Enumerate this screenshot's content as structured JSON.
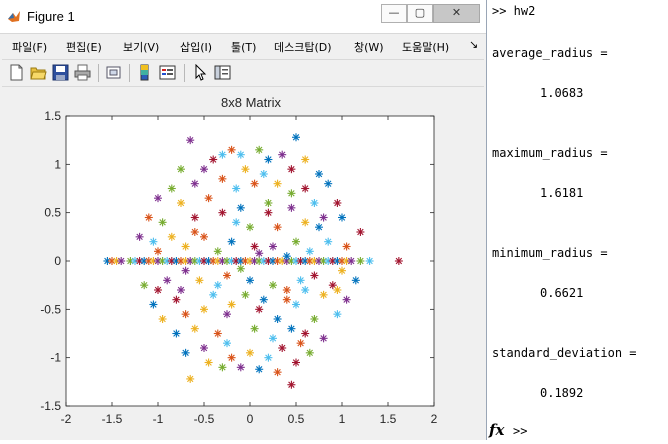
{
  "window": {
    "title": "Figure 1",
    "buttons": {
      "minimize": "—",
      "maximize": "▢",
      "close": "✕"
    }
  },
  "menu": [
    {
      "label": "파일(F)"
    },
    {
      "label": "편집(E)"
    },
    {
      "label": "보기(V)"
    },
    {
      "label": "삽입(I)"
    },
    {
      "label": "툴(T)"
    },
    {
      "label": "데스크탑(D)"
    },
    {
      "label": "창(W)"
    },
    {
      "label": "도움말(H)"
    }
  ],
  "menu_overflow": "↘",
  "toolbar_icons": [
    "new-figure-icon",
    "open-file-icon",
    "save-icon",
    "print-icon",
    "link-plot-icon",
    "insert-colorbar-icon",
    "insert-legend-icon",
    "pointer-arrow-icon",
    "property-inspector-icon"
  ],
  "chart_data": {
    "type": "scatter",
    "title": "8x8 Matrix",
    "xlabel": "",
    "ylabel": "",
    "xlim": [
      -2,
      2
    ],
    "ylim": [
      -1.5,
      1.5
    ],
    "xticks": [
      "-2",
      "-1.5",
      "-1",
      "-0.5",
      "0",
      "0.5",
      "1",
      "1.5",
      "2"
    ],
    "yticks": [
      "1.5",
      "1",
      "0.5",
      "0",
      "-0.5",
      "-1",
      "-1.5"
    ],
    "marker": "asterisk",
    "grid": false,
    "colors": [
      "#0072BD",
      "#D95319",
      "#EDB120",
      "#7E2F8E",
      "#77AC30",
      "#4DBEEE",
      "#A2142F"
    ],
    "axis_points": [
      -1.55,
      -1.5,
      -1.45,
      -1.4,
      -1.3,
      -1.25,
      -1.2,
      -1.15,
      -1.1,
      -1.05,
      -1.0,
      -0.95,
      -0.9,
      -0.85,
      -0.8,
      -0.75,
      -0.7,
      -0.65,
      -0.6,
      -0.55,
      -0.5,
      -0.45,
      -0.4,
      -0.35,
      -0.3,
      -0.25,
      -0.2,
      -0.15,
      -0.1,
      -0.05,
      0.0,
      0.05,
      0.1,
      0.15,
      0.2,
      0.25,
      0.3,
      0.35,
      0.4,
      0.45,
      0.5,
      0.55,
      0.6,
      0.65,
      0.7,
      0.75,
      0.8,
      0.85,
      0.9,
      0.95,
      1.0,
      1.05,
      1.1,
      1.2,
      1.3,
      1.6181
    ],
    "points": [
      [
        0.5,
        1.28
      ],
      [
        -0.65,
        1.25
      ],
      [
        0.45,
        -1.28
      ],
      [
        -0.65,
        -1.22
      ],
      [
        -0.3,
        1.1
      ],
      [
        -0.2,
        1.15
      ],
      [
        0.1,
        1.15
      ],
      [
        0.2,
        1.05
      ],
      [
        0.35,
        1.1
      ],
      [
        -0.4,
        1.05
      ],
      [
        0.6,
        1.05
      ],
      [
        -0.1,
        1.1
      ],
      [
        0.3,
        -1.15
      ],
      [
        -0.3,
        -1.1
      ],
      [
        0.1,
        -1.12
      ],
      [
        -0.1,
        -1.1
      ],
      [
        0.5,
        -1.05
      ],
      [
        -0.45,
        -1.05
      ],
      [
        0.2,
        -1.0
      ],
      [
        -0.2,
        -1.0
      ],
      [
        -0.75,
        0.95
      ],
      [
        0.75,
        0.9
      ],
      [
        -0.5,
        0.95
      ],
      [
        0.45,
        0.95
      ],
      [
        -0.05,
        0.95
      ],
      [
        0.15,
        0.9
      ],
      [
        -0.3,
        0.85
      ],
      [
        0.65,
        -0.95
      ],
      [
        -0.7,
        -0.95
      ],
      [
        -0.5,
        -0.9
      ],
      [
        0.35,
        -0.9
      ],
      [
        0.0,
        -0.95
      ],
      [
        -0.25,
        -0.85
      ],
      [
        0.55,
        -0.85
      ],
      [
        -0.85,
        0.75
      ],
      [
        0.85,
        0.8
      ],
      [
        -0.6,
        0.8
      ],
      [
        0.6,
        0.75
      ],
      [
        0.3,
        0.8
      ],
      [
        -0.15,
        0.75
      ],
      [
        0.05,
        0.8
      ],
      [
        0.45,
        0.7
      ],
      [
        -0.8,
        -0.75
      ],
      [
        0.8,
        -0.8
      ],
      [
        0.6,
        -0.75
      ],
      [
        -0.6,
        -0.7
      ],
      [
        0.25,
        -0.8
      ],
      [
        -0.35,
        -0.75
      ],
      [
        0.05,
        -0.7
      ],
      [
        0.45,
        -0.7
      ],
      [
        -1.0,
        0.65
      ],
      [
        0.95,
        0.6
      ],
      [
        -0.75,
        0.6
      ],
      [
        0.7,
        0.6
      ],
      [
        -0.45,
        0.65
      ],
      [
        0.2,
        0.6
      ],
      [
        -0.1,
        0.55
      ],
      [
        0.45,
        0.55
      ],
      [
        -0.3,
        0.5
      ],
      [
        -0.95,
        -0.6
      ],
      [
        0.95,
        -0.55
      ],
      [
        -0.7,
        -0.55
      ],
      [
        0.7,
        -0.6
      ],
      [
        0.3,
        -0.6
      ],
      [
        -0.25,
        -0.55
      ],
      [
        0.1,
        -0.5
      ],
      [
        -0.5,
        -0.5
      ],
      [
        0.5,
        -0.45
      ],
      [
        -1.1,
        0.45
      ],
      [
        -0.95,
        0.4
      ],
      [
        1.0,
        0.45
      ],
      [
        0.8,
        0.45
      ],
      [
        -0.6,
        0.45
      ],
      [
        0.6,
        0.4
      ],
      [
        -0.15,
        0.4
      ],
      [
        0.3,
        0.35
      ],
      [
        0.0,
        0.35
      ],
      [
        -1.05,
        -0.45
      ],
      [
        1.05,
        -0.4
      ],
      [
        -0.8,
        -0.4
      ],
      [
        0.8,
        -0.35
      ],
      [
        -0.4,
        -0.35
      ],
      [
        0.4,
        -0.4
      ],
      [
        -0.05,
        -0.35
      ],
      [
        0.15,
        -0.4
      ],
      [
        -1.2,
        0.25
      ],
      [
        1.2,
        0.3
      ],
      [
        -0.85,
        0.25
      ],
      [
        0.85,
        0.2
      ],
      [
        -0.5,
        0.25
      ],
      [
        0.5,
        0.2
      ],
      [
        -0.2,
        0.2
      ],
      [
        0.25,
        0.15
      ],
      [
        0.05,
        0.15
      ],
      [
        -0.7,
        0.15
      ],
      [
        0.65,
        0.1
      ],
      [
        -1.0,
        0.1
      ],
      [
        -1.15,
        -0.25
      ],
      [
        1.15,
        -0.2
      ],
      [
        -0.9,
        -0.2
      ],
      [
        0.9,
        -0.25
      ],
      [
        -0.55,
        -0.2
      ],
      [
        0.55,
        -0.2
      ],
      [
        -0.25,
        -0.15
      ],
      [
        0.25,
        -0.25
      ],
      [
        0.0,
        -0.2
      ],
      [
        -0.7,
        -0.1
      ],
      [
        0.7,
        -0.15
      ],
      [
        1.0,
        -0.1
      ],
      [
        -1.05,
        0.2
      ],
      [
        1.05,
        0.15
      ],
      [
        -0.35,
        0.1
      ],
      [
        0.4,
        0.05
      ],
      [
        0.1,
        0.08
      ],
      [
        -1.0,
        -0.3
      ],
      [
        0.95,
        -0.3
      ],
      [
        -0.35,
        -0.25
      ],
      [
        0.4,
        -0.3
      ],
      [
        -0.1,
        -0.08
      ],
      [
        0.75,
        0.35
      ],
      [
        -0.75,
        -0.3
      ],
      [
        0.2,
        0.5
      ],
      [
        -0.2,
        -0.45
      ],
      [
        0.6,
        -0.3
      ],
      [
        -0.6,
        0.3
      ]
    ]
  },
  "console": {
    "lines": [
      {
        "text": ">> hw2",
        "x": 4,
        "y": 14
      },
      {
        "text": "average_radius =",
        "x": 4,
        "y": 56
      },
      {
        "text": "1.0683",
        "x": 52,
        "y": 96
      },
      {
        "text": "maximum_radius =",
        "x": 4,
        "y": 156
      },
      {
        "text": "1.6181",
        "x": 52,
        "y": 196
      },
      {
        "text": "minimum_radius =",
        "x": 4,
        "y": 256
      },
      {
        "text": "0.6621",
        "x": 52,
        "y": 296
      },
      {
        "text": "standard_deviation =",
        "x": 4,
        "y": 356
      },
      {
        "text": "0.1892",
        "x": 52,
        "y": 396
      }
    ],
    "fx_label": "fx",
    "prompt": ">>"
  }
}
